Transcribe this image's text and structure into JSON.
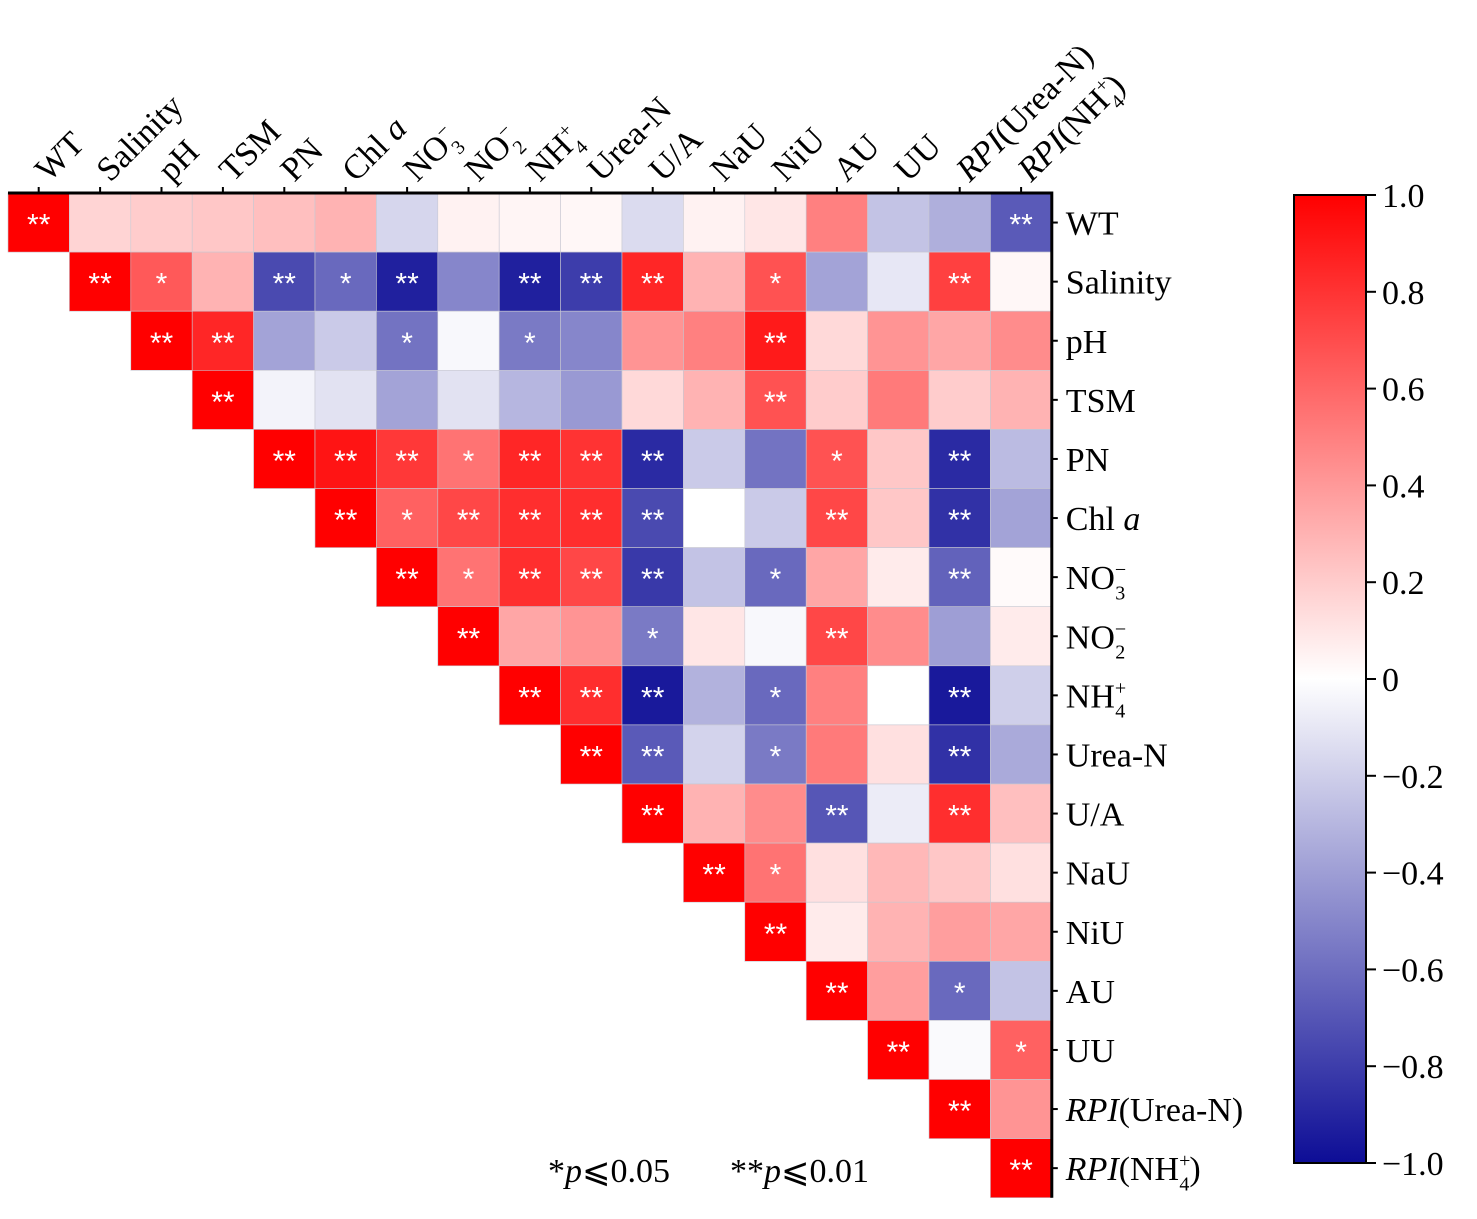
{
  "chart_data": {
    "type": "heatmap",
    "variables": [
      {
        "parts": [
          {
            "t": "WT"
          }
        ]
      },
      {
        "parts": [
          {
            "t": "Salinity"
          }
        ]
      },
      {
        "parts": [
          {
            "t": "pH"
          }
        ]
      },
      {
        "parts": [
          {
            "t": "TSM"
          }
        ]
      },
      {
        "parts": [
          {
            "t": "PN"
          }
        ]
      },
      {
        "parts": [
          {
            "t": "Chl "
          },
          {
            "t": "a",
            "i": true
          }
        ]
      },
      {
        "parts": [
          {
            "t": "NO"
          },
          {
            "sup": "−",
            "sub": "3"
          }
        ]
      },
      {
        "parts": [
          {
            "t": "NO"
          },
          {
            "sup": "−",
            "sub": "2"
          }
        ]
      },
      {
        "parts": [
          {
            "t": "NH"
          },
          {
            "sup": "+",
            "sub": "4"
          }
        ]
      },
      {
        "parts": [
          {
            "t": "Urea-N"
          }
        ]
      },
      {
        "parts": [
          {
            "t": "U/A"
          }
        ]
      },
      {
        "parts": [
          {
            "t": "NaU"
          }
        ]
      },
      {
        "parts": [
          {
            "t": "NiU"
          }
        ]
      },
      {
        "parts": [
          {
            "t": "AU"
          }
        ]
      },
      {
        "parts": [
          {
            "t": "UU"
          }
        ]
      },
      {
        "parts": [
          {
            "t": "RPI",
            "i": true
          },
          {
            "t": "(Urea-N)"
          }
        ]
      },
      {
        "parts": [
          {
            "t": "RPI",
            "i": true
          },
          {
            "t": "(NH"
          },
          {
            "sup": "+",
            "sub": "4"
          },
          {
            "t": ")"
          }
        ]
      }
    ],
    "rows": [
      {
        "values": [
          1.0,
          0.17,
          0.2,
          0.22,
          0.25,
          0.3,
          -0.17,
          0.05,
          0.04,
          0.03,
          -0.15,
          0.05,
          0.1,
          0.5,
          -0.25,
          -0.33,
          -0.68
        ],
        "sig": [
          "**",
          "",
          "",
          "",
          "",
          "",
          "",
          "",
          "",
          "",
          "",
          "",
          "",
          "",
          "",
          "",
          "**"
        ]
      },
      {
        "values": [
          1.0,
          0.65,
          0.3,
          -0.75,
          -0.62,
          -0.92,
          -0.5,
          -0.92,
          -0.8,
          0.85,
          0.3,
          0.68,
          -0.38,
          -0.1,
          0.75,
          0.03
        ],
        "sig": [
          "**",
          "*",
          "",
          "**",
          "*",
          "**",
          "",
          "**",
          "**",
          "**",
          "",
          "*",
          "",
          "",
          "**",
          ""
        ]
      },
      {
        "values": [
          1.0,
          0.85,
          -0.38,
          -0.22,
          -0.58,
          -0.03,
          -0.55,
          -0.5,
          0.42,
          0.5,
          0.9,
          0.15,
          0.42,
          0.35,
          0.45
        ],
        "sig": [
          "**",
          "**",
          "",
          "",
          "*",
          "",
          "*",
          "",
          "",
          "",
          "**",
          "",
          "",
          "",
          ""
        ]
      },
      {
        "values": [
          1.0,
          -0.05,
          -0.12,
          -0.38,
          -0.12,
          -0.3,
          -0.42,
          0.15,
          0.3,
          0.68,
          0.2,
          0.52,
          0.2,
          0.3
        ],
        "sig": [
          "**",
          "",
          "",
          "",
          "",
          "",
          "",
          "",
          "",
          "**",
          "",
          "",
          "",
          ""
        ]
      },
      {
        "values": [
          1.0,
          0.92,
          0.78,
          0.55,
          0.85,
          0.8,
          -0.88,
          -0.22,
          -0.58,
          0.68,
          0.22,
          -0.88,
          -0.28
        ],
        "sig": [
          "**",
          "**",
          "**",
          "*",
          "**",
          "**",
          "**",
          "",
          "",
          "*",
          "",
          "**",
          ""
        ]
      },
      {
        "values": [
          1.0,
          0.62,
          0.72,
          0.82,
          0.82,
          -0.75,
          0.0,
          -0.22,
          0.72,
          0.22,
          -0.85,
          -0.38
        ],
        "sig": [
          "**",
          "*",
          "**",
          "**",
          "**",
          "**",
          "",
          "",
          "**",
          "",
          "**",
          ""
        ]
      },
      {
        "values": [
          1.0,
          0.55,
          0.82,
          0.72,
          -0.82,
          -0.25,
          -0.62,
          0.35,
          0.08,
          -0.65,
          0.02
        ],
        "sig": [
          "**",
          "*",
          "**",
          "**",
          "**",
          "",
          "*",
          "",
          "",
          "**",
          ""
        ]
      },
      {
        "values": [
          1.0,
          0.35,
          0.42,
          -0.55,
          0.1,
          -0.03,
          0.72,
          0.45,
          -0.4,
          0.08
        ],
        "sig": [
          "**",
          "",
          "",
          "*",
          "",
          "",
          "**",
          "",
          "",
          ""
        ]
      },
      {
        "values": [
          1.0,
          0.82,
          -0.95,
          -0.32,
          -0.62,
          0.5,
          0.0,
          -0.95,
          -0.2
        ],
        "sig": [
          "**",
          "**",
          "**",
          "",
          "*",
          "",
          "",
          "**",
          ""
        ]
      },
      {
        "values": [
          1.0,
          -0.68,
          -0.18,
          -0.55,
          0.52,
          0.12,
          -0.85,
          -0.35
        ],
        "sig": [
          "**",
          "**",
          "",
          "*",
          "",
          "",
          "**",
          ""
        ]
      },
      {
        "values": [
          1.0,
          0.3,
          0.45,
          -0.7,
          -0.08,
          0.82,
          0.25
        ],
        "sig": [
          "**",
          "",
          "",
          "**",
          "",
          "**",
          ""
        ]
      },
      {
        "values": [
          1.0,
          0.55,
          0.12,
          0.28,
          0.22,
          0.12
        ],
        "sig": [
          "**",
          "*",
          "",
          "",
          "",
          ""
        ]
      },
      {
        "values": [
          1.0,
          0.08,
          0.3,
          0.38,
          0.35
        ],
        "sig": [
          "**",
          "",
          "",
          "",
          ""
        ]
      },
      {
        "values": [
          1.0,
          0.38,
          -0.62,
          -0.25
        ],
        "sig": [
          "**",
          "",
          "*",
          ""
        ]
      },
      {
        "values": [
          1.0,
          -0.02,
          0.62
        ],
        "sig": [
          "**",
          "",
          "*"
        ]
      },
      {
        "values": [
          1.0,
          0.42
        ],
        "sig": [
          "**",
          ""
        ]
      },
      {
        "values": [
          1.0
        ],
        "sig": [
          "**"
        ]
      }
    ],
    "colorbar": {
      "min": -1.0,
      "max": 1.0,
      "ticks": [
        "1.0",
        "0.8",
        "0.6",
        "0.4",
        "0.2",
        "0",
        "−0.2",
        "−0.4",
        "−0.6",
        "−0.8",
        "−1.0"
      ],
      "colors": {
        "negative": "#0d0d96",
        "zero": "#ffffff",
        "positive": "#ff0000"
      }
    },
    "legend": [
      {
        "parts": [
          {
            "t": "*"
          },
          {
            "t": "p",
            "i": true
          },
          {
            "t": "⩽0.05"
          }
        ]
      },
      {
        "parts": [
          {
            "t": "**"
          },
          {
            "t": "p",
            "i": true
          },
          {
            "t": "⩽0.01"
          }
        ]
      }
    ]
  }
}
